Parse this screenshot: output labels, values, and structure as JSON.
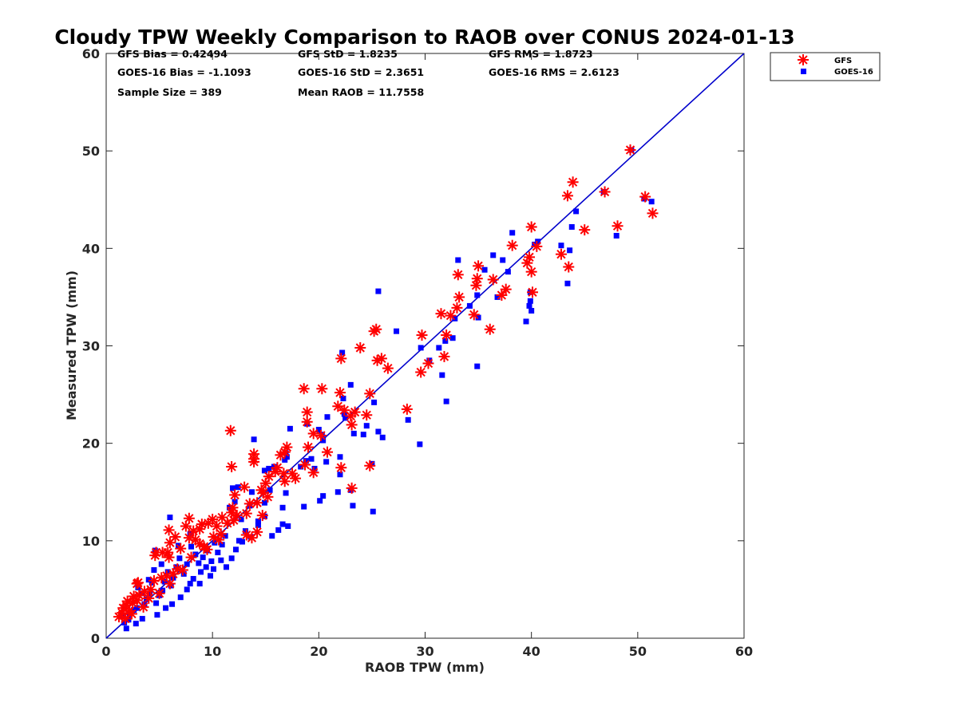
{
  "chart_data": {
    "type": "scatter",
    "title": "Cloudy TPW Weekly Comparison to RAOB over CONUS 2024-01-13",
    "xlabel": "RAOB TPW (mm)",
    "ylabel": "Measured TPW (mm)",
    "xlim": [
      0,
      60
    ],
    "ylim": [
      0,
      60
    ],
    "xticks": [
      "0",
      "10",
      "20",
      "30",
      "40",
      "50",
      "60"
    ],
    "yticks": [
      "0",
      "10",
      "20",
      "30",
      "40",
      "50",
      "60"
    ],
    "grid": false,
    "legend_position": "top-right-outside",
    "stats": [
      "GFS Bias = 0.42494",
      "GOES-16 Bias = -1.1093",
      "Sample Size = 389",
      "GFS StD = 1.8235",
      "GOES-16 StD = 2.3651",
      "Mean RAOB = 11.7558",
      "GFS RMS = 1.8723",
      "GOES-16 RMS = 2.6123"
    ],
    "reference_line": {
      "label": "1:1",
      "from": [
        0,
        0
      ],
      "to": [
        60,
        60
      ],
      "color": "#0000cc"
    },
    "series": [
      {
        "name": "GFS",
        "marker": "asterisk",
        "color": "#ff0000",
        "points": [
          [
            49.3,
            50.1
          ],
          [
            50.7,
            45.3
          ],
          [
            51.4,
            43.6
          ],
          [
            46.9,
            45.8
          ],
          [
            48.1,
            42.3
          ],
          [
            45.0,
            41.9
          ],
          [
            43.9,
            46.8
          ],
          [
            43.4,
            45.4
          ],
          [
            43.5,
            38.1
          ],
          [
            42.8,
            39.4
          ],
          [
            40.0,
            42.2
          ],
          [
            40.5,
            40.2
          ],
          [
            39.8,
            39.1
          ],
          [
            39.6,
            38.5
          ],
          [
            40.0,
            37.6
          ],
          [
            40.1,
            35.5
          ],
          [
            38.2,
            40.3
          ],
          [
            37.6,
            35.8
          ],
          [
            37.2,
            35.2
          ],
          [
            36.4,
            36.8
          ],
          [
            35.0,
            38.2
          ],
          [
            34.9,
            36.9
          ],
          [
            34.8,
            36.2
          ],
          [
            34.6,
            33.2
          ],
          [
            36.1,
            31.7
          ],
          [
            33.1,
            37.3
          ],
          [
            33.2,
            35.0
          ],
          [
            33.0,
            33.9
          ],
          [
            32.4,
            33.1
          ],
          [
            31.5,
            33.3
          ],
          [
            32.0,
            31.1
          ],
          [
            31.8,
            28.9
          ],
          [
            30.3,
            28.2
          ],
          [
            29.7,
            31.1
          ],
          [
            29.6,
            27.3
          ],
          [
            28.3,
            23.5
          ],
          [
            26.5,
            27.7
          ],
          [
            25.9,
            28.7
          ],
          [
            25.5,
            28.5
          ],
          [
            25.4,
            31.7
          ],
          [
            25.2,
            31.5
          ],
          [
            24.8,
            25.1
          ],
          [
            23.9,
            29.8
          ],
          [
            22.1,
            28.7
          ],
          [
            22.0,
            25.2
          ],
          [
            21.8,
            23.8
          ],
          [
            22.4,
            23.4
          ],
          [
            23.0,
            22.8
          ],
          [
            23.4,
            23.2
          ],
          [
            24.5,
            22.9
          ],
          [
            23.1,
            21.9
          ],
          [
            24.8,
            17.7
          ],
          [
            22.1,
            17.5
          ],
          [
            23.1,
            15.4
          ],
          [
            20.3,
            25.6
          ],
          [
            18.6,
            25.6
          ],
          [
            18.9,
            23.2
          ],
          [
            18.9,
            22.2
          ],
          [
            19.5,
            21.0
          ],
          [
            20.2,
            20.8
          ],
          [
            20.8,
            19.1
          ],
          [
            19.0,
            19.6
          ],
          [
            18.7,
            17.8
          ],
          [
            19.5,
            17.0
          ],
          [
            17.8,
            16.4
          ],
          [
            17.0,
            19.6
          ],
          [
            16.8,
            19.1
          ],
          [
            16.4,
            18.8
          ],
          [
            16.1,
            17.5
          ],
          [
            16.7,
            16.9
          ],
          [
            16.8,
            16.1
          ],
          [
            17.5,
            16.9
          ],
          [
            15.9,
            17.1
          ],
          [
            15.3,
            16.6
          ],
          [
            15.0,
            15.9
          ],
          [
            15.2,
            14.5
          ],
          [
            14.6,
            15.2
          ],
          [
            14.2,
            13.9
          ],
          [
            14.7,
            12.6
          ],
          [
            14.8,
            14.9
          ],
          [
            13.9,
            18.9
          ],
          [
            13.9,
            18.4
          ],
          [
            13.9,
            18.1
          ],
          [
            13.5,
            13.8
          ],
          [
            13.2,
            12.8
          ],
          [
            13.2,
            10.6
          ],
          [
            13.7,
            10.3
          ],
          [
            14.2,
            10.9
          ],
          [
            11.7,
            21.3
          ],
          [
            11.8,
            17.6
          ],
          [
            12.1,
            14.7
          ],
          [
            13.0,
            15.5
          ],
          [
            11.9,
            13.4
          ],
          [
            11.8,
            12.9
          ],
          [
            12.3,
            12.6
          ],
          [
            12.0,
            12.1
          ],
          [
            10.9,
            12.4
          ],
          [
            10.4,
            11.5
          ],
          [
            10.0,
            12.2
          ],
          [
            9.6,
            11.8
          ],
          [
            9.0,
            11.7
          ],
          [
            8.8,
            11.2
          ],
          [
            8.2,
            11.0
          ],
          [
            7.8,
            12.3
          ],
          [
            7.5,
            11.5
          ],
          [
            7.8,
            10.3
          ],
          [
            8.4,
            10.1
          ],
          [
            8.8,
            9.7
          ],
          [
            9.2,
            9.4
          ],
          [
            10.1,
            10.4
          ],
          [
            10.6,
            10.1
          ],
          [
            7.0,
            9.2
          ],
          [
            6.5,
            10.4
          ],
          [
            6.0,
            9.8
          ],
          [
            5.9,
            11.1
          ],
          [
            5.8,
            8.8
          ],
          [
            5.3,
            8.8
          ],
          [
            4.7,
            8.8
          ],
          [
            4.6,
            8.5
          ],
          [
            5.9,
            8.3
          ],
          [
            6.7,
            7.1
          ],
          [
            6.3,
            6.6
          ],
          [
            5.7,
            6.4
          ],
          [
            5.2,
            6.2
          ],
          [
            4.5,
            5.9
          ],
          [
            4.2,
            5.0
          ],
          [
            3.6,
            4.8
          ],
          [
            3.1,
            4.4
          ],
          [
            2.9,
            5.6
          ],
          [
            3.0,
            5.7
          ],
          [
            2.6,
            4.3
          ],
          [
            2.9,
            3.9
          ],
          [
            2.5,
            3.6
          ],
          [
            2.0,
            3.8
          ],
          [
            1.9,
            3.4
          ],
          [
            1.6,
            3.1
          ],
          [
            1.5,
            2.6
          ],
          [
            2.2,
            2.8
          ],
          [
            2.4,
            2.5
          ],
          [
            1.2,
            2.2
          ],
          [
            1.8,
            2.0
          ],
          [
            3.5,
            3.2
          ],
          [
            4.0,
            4.1
          ],
          [
            5.0,
            4.6
          ],
          [
            6.0,
            5.6
          ],
          [
            7.2,
            7.0
          ],
          [
            8.0,
            8.3
          ],
          [
            9.5,
            9.1
          ],
          [
            10.8,
            10.7
          ],
          [
            11.4,
            11.8
          ]
        ]
      },
      {
        "name": "GOES-16",
        "marker": "square",
        "color": "#0000ff",
        "points": [
          [
            49.4,
            50.1
          ],
          [
            50.6,
            45.1
          ],
          [
            51.3,
            44.8
          ],
          [
            46.8,
            45.8
          ],
          [
            48.0,
            41.3
          ],
          [
            44.2,
            43.8
          ],
          [
            43.8,
            42.2
          ],
          [
            43.6,
            39.8
          ],
          [
            43.4,
            36.4
          ],
          [
            42.8,
            40.3
          ],
          [
            40.6,
            40.7
          ],
          [
            40.3,
            40.4
          ],
          [
            38.2,
            41.6
          ],
          [
            39.9,
            35.5
          ],
          [
            39.9,
            34.6
          ],
          [
            39.8,
            34.1
          ],
          [
            40.0,
            33.6
          ],
          [
            39.5,
            32.5
          ],
          [
            37.3,
            38.8
          ],
          [
            36.8,
            35.0
          ],
          [
            36.4,
            39.3
          ],
          [
            37.8,
            37.6
          ],
          [
            35.6,
            37.8
          ],
          [
            34.9,
            35.2
          ],
          [
            34.2,
            34.1
          ],
          [
            35.0,
            32.9
          ],
          [
            34.9,
            27.9
          ],
          [
            33.1,
            38.8
          ],
          [
            32.8,
            32.8
          ],
          [
            32.6,
            30.8
          ],
          [
            31.9,
            30.5
          ],
          [
            31.3,
            29.8
          ],
          [
            31.6,
            27.0
          ],
          [
            32.0,
            24.3
          ],
          [
            30.4,
            28.5
          ],
          [
            29.6,
            29.8
          ],
          [
            29.5,
            19.9
          ],
          [
            27.3,
            31.5
          ],
          [
            25.6,
            35.6
          ],
          [
            28.4,
            22.4
          ],
          [
            26.0,
            20.6
          ],
          [
            25.6,
            21.2
          ],
          [
            24.5,
            21.8
          ],
          [
            24.2,
            20.9
          ],
          [
            23.3,
            21.0
          ],
          [
            25.2,
            24.2
          ],
          [
            25.0,
            17.9
          ],
          [
            25.1,
            13.0
          ],
          [
            23.0,
            15.2
          ],
          [
            23.2,
            13.6
          ],
          [
            22.2,
            29.3
          ],
          [
            23.0,
            26.0
          ],
          [
            22.3,
            24.6
          ],
          [
            22.4,
            23.0
          ],
          [
            22.5,
            22.6
          ],
          [
            22.0,
            18.6
          ],
          [
            22.0,
            16.8
          ],
          [
            21.8,
            15.0
          ],
          [
            20.8,
            22.7
          ],
          [
            20.0,
            21.4
          ],
          [
            20.3,
            20.9
          ],
          [
            20.4,
            20.3
          ],
          [
            20.7,
            18.1
          ],
          [
            20.4,
            14.6
          ],
          [
            20.1,
            14.1
          ],
          [
            18.9,
            22.0
          ],
          [
            19.6,
            17.4
          ],
          [
            19.3,
            18.4
          ],
          [
            18.8,
            18.2
          ],
          [
            18.3,
            17.6
          ],
          [
            18.6,
            13.5
          ],
          [
            17.3,
            21.5
          ],
          [
            16.9,
            19.0
          ],
          [
            17.0,
            18.6
          ],
          [
            16.8,
            18.3
          ],
          [
            16.9,
            14.9
          ],
          [
            16.6,
            13.4
          ],
          [
            16.6,
            11.7
          ],
          [
            17.1,
            11.5
          ],
          [
            16.2,
            11.1
          ],
          [
            15.8,
            17.6
          ],
          [
            15.3,
            17.4
          ],
          [
            14.9,
            17.2
          ],
          [
            15.4,
            15.2
          ],
          [
            14.9,
            13.9
          ],
          [
            14.9,
            12.5
          ],
          [
            15.6,
            10.5
          ],
          [
            14.3,
            11.6
          ],
          [
            13.9,
            20.4
          ],
          [
            13.7,
            15.0
          ],
          [
            13.5,
            13.6
          ],
          [
            14.3,
            12.0
          ],
          [
            13.6,
            10.4
          ],
          [
            12.4,
            15.5
          ],
          [
            11.9,
            15.4
          ],
          [
            12.1,
            14.0
          ],
          [
            11.6,
            13.4
          ],
          [
            12.7,
            12.2
          ],
          [
            12.5,
            10.0
          ],
          [
            12.2,
            9.1
          ],
          [
            11.8,
            8.2
          ],
          [
            11.2,
            10.5
          ],
          [
            10.9,
            9.6
          ],
          [
            10.5,
            8.8
          ],
          [
            10.2,
            9.8
          ],
          [
            9.9,
            7.9
          ],
          [
            9.5,
            9.0
          ],
          [
            9.1,
            8.3
          ],
          [
            8.7,
            7.7
          ],
          [
            8.4,
            8.6
          ],
          [
            8.0,
            9.4
          ],
          [
            7.9,
            10.7
          ],
          [
            7.6,
            7.6
          ],
          [
            7.3,
            6.6
          ],
          [
            7.9,
            5.6
          ],
          [
            8.2,
            6.1
          ],
          [
            8.9,
            6.8
          ],
          [
            9.4,
            7.3
          ],
          [
            10.1,
            7.1
          ],
          [
            10.8,
            8.0
          ],
          [
            6.9,
            8.2
          ],
          [
            6.6,
            7.3
          ],
          [
            6.3,
            6.2
          ],
          [
            6.0,
            12.4
          ],
          [
            6.1,
            5.4
          ],
          [
            5.8,
            6.8
          ],
          [
            5.5,
            5.8
          ],
          [
            5.3,
            4.9
          ],
          [
            5.0,
            4.4
          ],
          [
            4.6,
            9.0
          ],
          [
            4.5,
            7.0
          ],
          [
            4.3,
            5.7
          ],
          [
            4.1,
            4.6
          ],
          [
            4.7,
            3.6
          ],
          [
            5.6,
            3.1
          ],
          [
            3.8,
            4.0
          ],
          [
            3.6,
            3.5
          ],
          [
            3.3,
            4.6
          ],
          [
            3.0,
            5.2
          ],
          [
            2.9,
            3.1
          ],
          [
            2.6,
            2.9
          ],
          [
            2.2,
            2.5
          ],
          [
            2.1,
            1.9
          ],
          [
            1.9,
            1.0
          ],
          [
            1.5,
            2.3
          ],
          [
            1.7,
            1.6
          ],
          [
            2.8,
            1.5
          ],
          [
            3.4,
            2.0
          ],
          [
            4.8,
            2.4
          ],
          [
            6.2,
            3.5
          ],
          [
            7.0,
            4.2
          ],
          [
            7.6,
            5.0
          ],
          [
            8.8,
            5.6
          ],
          [
            9.8,
            6.4
          ],
          [
            11.3,
            7.3
          ],
          [
            12.8,
            9.9
          ],
          [
            13.1,
            11.0
          ],
          [
            6.8,
            9.5
          ],
          [
            5.2,
            7.6
          ],
          [
            4.0,
            6.0
          ]
        ]
      }
    ]
  }
}
